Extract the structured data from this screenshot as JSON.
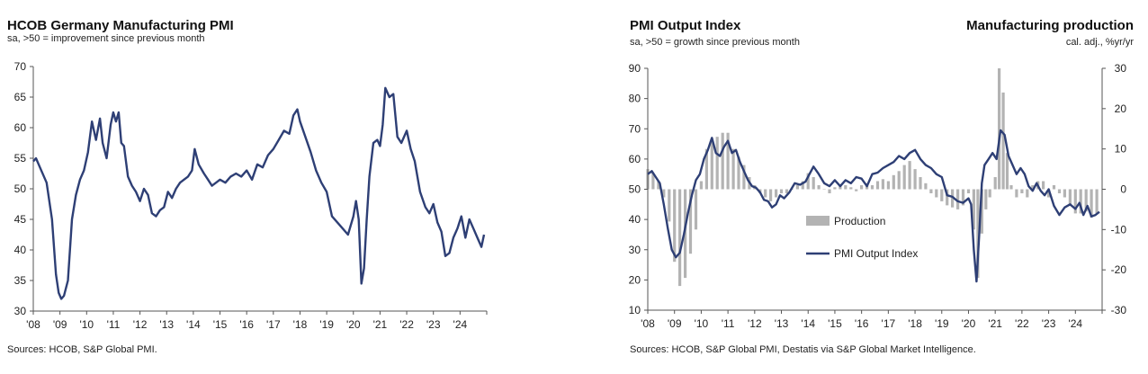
{
  "left": {
    "title": "HCOB Germany Manufacturing PMI",
    "subtitle": "sa, >50 = improvement since previous month",
    "source": "Sources: HCOB, S&P Global PMI."
  },
  "right": {
    "title_left": "PMI Output Index",
    "subtitle_left": "sa, >50 = growth since previous month",
    "title_right": "Manufacturing production",
    "subtitle_right": "cal. adj., %yr/yr",
    "legend_production": "Production",
    "legend_pmi": "PMI Output Index",
    "source": "Sources: HCOB, S&P Global PMI, Destatis via S&P Global Market Intelligence."
  },
  "colors": {
    "line": "#2e3f75",
    "bar": "#b3b3b3",
    "axis": "#555555"
  },
  "chart_data": [
    {
      "type": "line",
      "title": "HCOB Germany Manufacturing PMI",
      "subtitle": "sa, >50 = improvement since previous month",
      "ylim": [
        30,
        70
      ],
      "yticks": [
        30,
        35,
        40,
        45,
        50,
        55,
        60,
        65,
        70
      ],
      "xticks": [
        "'08",
        "'09",
        "'10",
        "'11",
        "'12",
        "'13",
        "'14",
        "'15",
        "'16",
        "'17",
        "'18",
        "'19",
        "'20",
        "'21",
        "'22",
        "'23",
        "'24"
      ],
      "grid": false,
      "series": [
        {
          "x": [
            2008.0,
            2008.1,
            2008.25,
            2008.5,
            2008.7,
            2008.85,
            2008.95,
            2009.05,
            2009.15,
            2009.3,
            2009.45,
            2009.6,
            2009.75,
            2009.9,
            2010.05,
            2010.2,
            2010.35,
            2010.5,
            2010.6,
            2010.75,
            2010.9,
            2011.0,
            2011.1,
            2011.2,
            2011.3,
            2011.4,
            2011.55,
            2011.7,
            2011.85,
            2012.0,
            2012.15,
            2012.3,
            2012.45,
            2012.6,
            2012.75,
            2012.9,
            2013.05,
            2013.2,
            2013.35,
            2013.5,
            2013.65,
            2013.8,
            2013.95,
            2014.05,
            2014.2,
            2014.4,
            2014.55,
            2014.7,
            2014.85,
            2015.0,
            2015.2,
            2015.4,
            2015.6,
            2015.8,
            2016.0,
            2016.2,
            2016.4,
            2016.6,
            2016.8,
            2017.0,
            2017.2,
            2017.4,
            2017.6,
            2017.75,
            2017.9,
            2018.0,
            2018.2,
            2018.4,
            2018.6,
            2018.8,
            2019.0,
            2019.2,
            2019.4,
            2019.6,
            2019.8,
            2020.0,
            2020.1,
            2020.2,
            2020.3,
            2020.4,
            2020.5,
            2020.6,
            2020.75,
            2020.9,
            2021.0,
            2021.1,
            2021.2,
            2021.35,
            2021.5,
            2021.65,
            2021.8,
            2022.0,
            2022.15,
            2022.3,
            2022.5,
            2022.7,
            2022.85,
            2023.0,
            2023.15,
            2023.3,
            2023.45,
            2023.6,
            2023.75,
            2023.9,
            2024.05,
            2024.2,
            2024.35,
            2024.5,
            2024.65,
            2024.8,
            2024.9
          ],
          "y": [
            54.5,
            55.0,
            53.5,
            51.0,
            45.0,
            36.0,
            33.0,
            32.0,
            32.5,
            35.0,
            45.0,
            49.0,
            51.5,
            53.0,
            56.0,
            61.0,
            58.0,
            61.5,
            57.5,
            55.0,
            60.5,
            62.5,
            61.0,
            62.5,
            57.5,
            57.0,
            52.0,
            50.5,
            49.5,
            48.0,
            50.0,
            49.0,
            46.0,
            45.5,
            46.5,
            47.0,
            49.5,
            48.5,
            50.0,
            51.0,
            51.5,
            52.0,
            53.0,
            56.5,
            54.0,
            52.5,
            51.5,
            50.5,
            51.0,
            51.5,
            51.0,
            52.0,
            52.5,
            52.0,
            53.0,
            51.5,
            54.0,
            53.5,
            55.5,
            56.5,
            58.0,
            59.5,
            59.0,
            62.0,
            63.0,
            61.0,
            58.5,
            56.0,
            53.0,
            51.0,
            49.5,
            45.5,
            44.5,
            43.5,
            42.5,
            45.5,
            48.0,
            45.0,
            34.5,
            37.0,
            45.0,
            52.0,
            57.5,
            58.0,
            57.0,
            60.5,
            66.5,
            65.0,
            65.5,
            58.5,
            57.5,
            59.5,
            56.5,
            54.5,
            49.5,
            47.0,
            46.0,
            47.5,
            44.5,
            43.0,
            39.0,
            39.5,
            42.0,
            43.5,
            45.5,
            42.0,
            45.0,
            43.5,
            42.0,
            40.5,
            42.5
          ]
        }
      ]
    },
    {
      "type": "bar+line",
      "title": "PMI Output Index",
      "subtitle": "sa, >50 = growth since previous month",
      "y2title": "Manufacturing production",
      "y2subtitle": "cal. adj., %yr/yr",
      "ylim": [
        10,
        90
      ],
      "yticks": [
        10,
        20,
        30,
        40,
        50,
        60,
        70,
        80,
        90
      ],
      "y2lim": [
        -30,
        30
      ],
      "y2ticks": [
        -30,
        -20,
        -10,
        0,
        10,
        20,
        30
      ],
      "xticks": [
        "'08",
        "'09",
        "'10",
        "'11",
        "'12",
        "'13",
        "'14",
        "'15",
        "'16",
        "'17",
        "'18",
        "'19",
        "'20",
        "'21",
        "'22",
        "'23",
        "'24"
      ],
      "legend": [
        "Production",
        "PMI Output Index"
      ],
      "series": [
        {
          "name": "PMI Output Index",
          "axis": "left",
          "x": [
            2008.0,
            2008.15,
            2008.3,
            2008.45,
            2008.6,
            2008.75,
            2008.9,
            2009.05,
            2009.2,
            2009.35,
            2009.5,
            2009.65,
            2009.8,
            2009.95,
            2010.1,
            2010.25,
            2010.4,
            2010.55,
            2010.7,
            2010.85,
            2011.0,
            2011.15,
            2011.3,
            2011.45,
            2011.6,
            2011.75,
            2011.9,
            2012.05,
            2012.2,
            2012.35,
            2012.5,
            2012.65,
            2012.8,
            2012.95,
            2013.1,
            2013.3,
            2013.5,
            2013.7,
            2013.9,
            2014.05,
            2014.2,
            2014.4,
            2014.6,
            2014.8,
            2015.0,
            2015.2,
            2015.4,
            2015.6,
            2015.8,
            2016.0,
            2016.2,
            2016.4,
            2016.6,
            2016.8,
            2017.0,
            2017.2,
            2017.4,
            2017.6,
            2017.8,
            2018.0,
            2018.2,
            2018.4,
            2018.6,
            2018.8,
            2019.0,
            2019.2,
            2019.4,
            2019.6,
            2019.8,
            2020.0,
            2020.1,
            2020.2,
            2020.3,
            2020.4,
            2020.5,
            2020.6,
            2020.75,
            2020.9,
            2021.05,
            2021.2,
            2021.35,
            2021.5,
            2021.65,
            2021.8,
            2021.95,
            2022.1,
            2022.25,
            2022.4,
            2022.55,
            2022.7,
            2022.85,
            2023.0,
            2023.2,
            2023.4,
            2023.6,
            2023.8,
            2024.0,
            2024.15,
            2024.3,
            2024.45,
            2024.6,
            2024.75,
            2024.9
          ],
          "y": [
            55.0,
            56.0,
            54.0,
            52.0,
            45.0,
            37.0,
            30.0,
            27.5,
            29.0,
            35.0,
            42.0,
            48.0,
            53.0,
            55.0,
            60.0,
            63.0,
            67.0,
            62.0,
            61.0,
            64.0,
            66.0,
            62.0,
            63.0,
            59.0,
            56.0,
            53.0,
            51.0,
            50.5,
            49.0,
            46.5,
            46.0,
            44.0,
            45.0,
            48.0,
            47.0,
            49.0,
            52.0,
            51.5,
            52.5,
            55.0,
            57.5,
            55.0,
            52.0,
            51.0,
            53.0,
            51.0,
            53.0,
            52.0,
            54.0,
            53.5,
            51.0,
            55.0,
            55.5,
            57.0,
            58.0,
            59.0,
            61.0,
            60.0,
            62.0,
            63.0,
            60.0,
            58.0,
            57.0,
            55.0,
            54.0,
            48.0,
            47.5,
            46.0,
            45.5,
            47.0,
            45.0,
            30.0,
            19.5,
            35.0,
            52.0,
            58.0,
            60.0,
            62.0,
            60.0,
            69.5,
            68.0,
            61.0,
            58.0,
            55.0,
            57.0,
            55.0,
            51.0,
            49.5,
            52.0,
            49.5,
            48.0,
            50.0,
            44.5,
            41.5,
            44.0,
            45.0,
            43.5,
            45.5,
            41.5,
            44.5,
            41.0,
            41.5,
            42.5
          ]
        },
        {
          "name": "Production",
          "axis": "right",
          "x": [
            2008.0,
            2008.2,
            2008.4,
            2008.6,
            2008.8,
            2009.0,
            2009.2,
            2009.4,
            2009.6,
            2009.8,
            2010.0,
            2010.2,
            2010.4,
            2010.6,
            2010.8,
            2011.0,
            2011.2,
            2011.4,
            2011.6,
            2011.8,
            2012.0,
            2012.2,
            2012.4,
            2012.6,
            2012.8,
            2013.0,
            2013.2,
            2013.4,
            2013.6,
            2013.8,
            2014.0,
            2014.2,
            2014.4,
            2014.6,
            2014.8,
            2015.0,
            2015.2,
            2015.4,
            2015.6,
            2015.8,
            2016.0,
            2016.2,
            2016.4,
            2016.6,
            2016.8,
            2017.0,
            2017.2,
            2017.4,
            2017.6,
            2017.8,
            2018.0,
            2018.2,
            2018.4,
            2018.6,
            2018.8,
            2019.0,
            2019.2,
            2019.4,
            2019.6,
            2019.8,
            2020.0,
            2020.2,
            2020.35,
            2020.5,
            2020.65,
            2020.8,
            2021.0,
            2021.15,
            2021.3,
            2021.45,
            2021.6,
            2021.8,
            2022.0,
            2022.2,
            2022.4,
            2022.6,
            2022.8,
            2023.0,
            2023.2,
            2023.4,
            2023.6,
            2023.8,
            2024.0,
            2024.2,
            2024.4,
            2024.6,
            2024.8
          ],
          "y": [
            5.0,
            4.0,
            2.0,
            -2.0,
            -8.0,
            -18.0,
            -24.0,
            -22.0,
            -16.0,
            -10.0,
            2.0,
            10.0,
            12.0,
            13.0,
            14.0,
            14.0,
            10.0,
            8.0,
            6.0,
            3.0,
            1.0,
            -1.0,
            -2.0,
            -3.0,
            -2.0,
            -1.0,
            -1.0,
            0.0,
            1.0,
            2.0,
            4.0,
            3.0,
            1.0,
            0.0,
            -1.0,
            0.5,
            1.0,
            1.0,
            0.5,
            -0.5,
            1.0,
            1.5,
            1.0,
            2.0,
            2.5,
            2.0,
            3.5,
            4.5,
            6.0,
            7.0,
            5.0,
            3.0,
            1.5,
            -1.0,
            -2.0,
            -3.0,
            -4.0,
            -4.5,
            -5.0,
            -4.0,
            -1.0,
            -10.0,
            -22.0,
            -11.0,
            -5.0,
            -2.0,
            3.0,
            30.0,
            24.0,
            9.0,
            1.0,
            -2.0,
            -1.0,
            -2.0,
            1.0,
            2.0,
            2.0,
            -2.0,
            1.0,
            -1.0,
            -2.0,
            -4.0,
            -6.0,
            -6.0,
            -5.5,
            -7.0,
            -6.0
          ]
        }
      ]
    }
  ]
}
